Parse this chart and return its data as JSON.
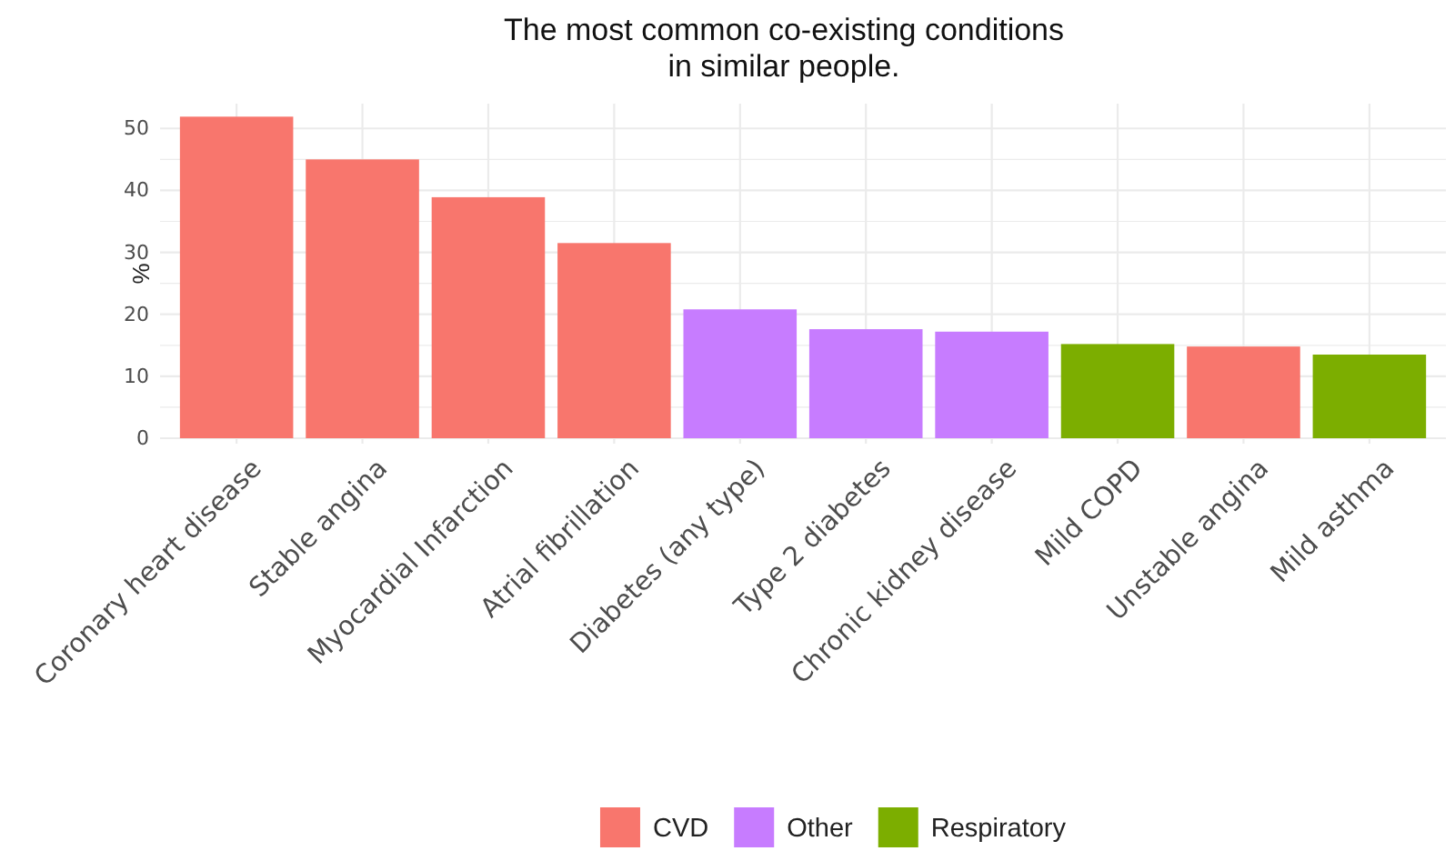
{
  "chart_data": {
    "type": "bar",
    "title": "The most common co-existing conditions\nin similar people.",
    "ylabel": "%",
    "categories": [
      "Coronary heart disease",
      "Stable angina",
      "Myocardial Infarction",
      "Atrial fibrillation",
      "Diabetes (any type)",
      "Type 2 diabetes",
      "Chronic kidney disease",
      "Mild COPD",
      "Unstable angina",
      "Mild asthma"
    ],
    "series": [
      {
        "name": "CVD",
        "color": "#f8766d",
        "values": [
          51.9,
          45,
          38.9,
          31.5,
          null,
          null,
          null,
          null,
          14.8,
          null
        ]
      },
      {
        "name": "Other",
        "color": "#c77cff",
        "values": [
          null,
          null,
          null,
          null,
          20.8,
          17.6,
          17.2,
          null,
          null,
          null
        ]
      },
      {
        "name": "Respiratory",
        "color": "#7cae00",
        "values": [
          null,
          null,
          null,
          null,
          null,
          null,
          null,
          15.2,
          null,
          13.5
        ]
      }
    ],
    "stacked": true,
    "ylim": [
      0,
      54
    ],
    "yticks": [
      0,
      {
        "value": 5,
        "label": null
      },
      10,
      {
        "value": 15,
        "label": null
      },
      20,
      {
        "value": 25,
        "label": null
      },
      30,
      {
        "value": 35,
        "label": null
      },
      40,
      {
        "value": 45,
        "label": null
      },
      50
    ],
    "grid": true,
    "legend": "bottom"
  }
}
